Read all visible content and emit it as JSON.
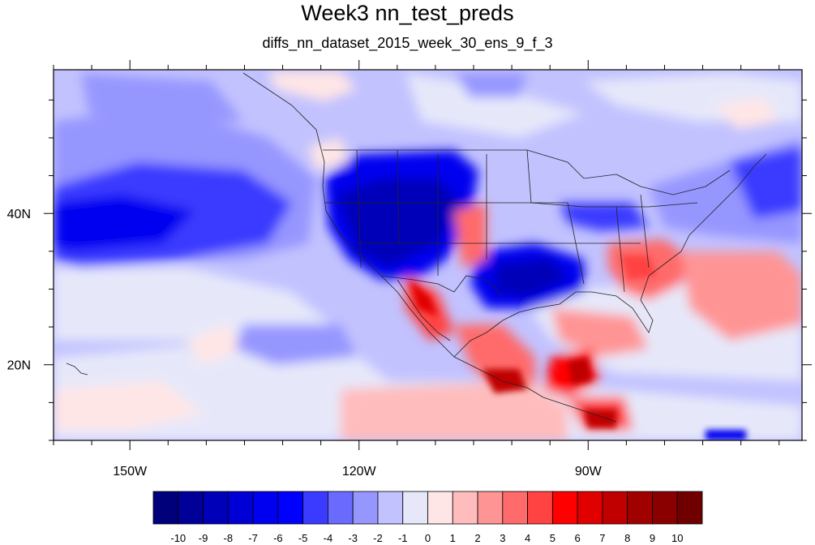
{
  "title": "Week3 nn_test_preds",
  "subtitle": "diffs_nn_dataset_2015_week_30_ens_9_f_3",
  "map": {
    "lon_range": [
      -160,
      -62
    ],
    "lat_range": [
      10,
      59
    ],
    "lon_ticks": [
      {
        "value": -150,
        "label": "150W"
      },
      {
        "value": -120,
        "label": "120W"
      },
      {
        "value": -90,
        "label": "90W"
      }
    ],
    "lat_ticks": [
      {
        "value": 40,
        "label": "40N"
      },
      {
        "value": 20,
        "label": "20N"
      }
    ],
    "minor_lon_every": 5,
    "minor_lat_every": 5
  },
  "colorbar": {
    "levels": [
      "-10",
      "-9",
      "-8",
      "-7",
      "-6",
      "-5",
      "-4",
      "-3",
      "-2",
      "-1",
      "0",
      "1",
      "2",
      "3",
      "4",
      "5",
      "6",
      "7",
      "8",
      "9",
      "10"
    ],
    "colors": [
      "#00007a",
      "#000099",
      "#0000b8",
      "#0000d6",
      "#0000f0",
      "#0000ff",
      "#3b3bff",
      "#6a6aff",
      "#9696ff",
      "#c2c2ff",
      "#e6e8fa",
      "#ffe6e6",
      "#ffbcbc",
      "#ff9494",
      "#ff6b6b",
      "#ff4242",
      "#ff0000",
      "#e00000",
      "#c00000",
      "#a00000",
      "#8a0000",
      "#700000"
    ]
  }
}
